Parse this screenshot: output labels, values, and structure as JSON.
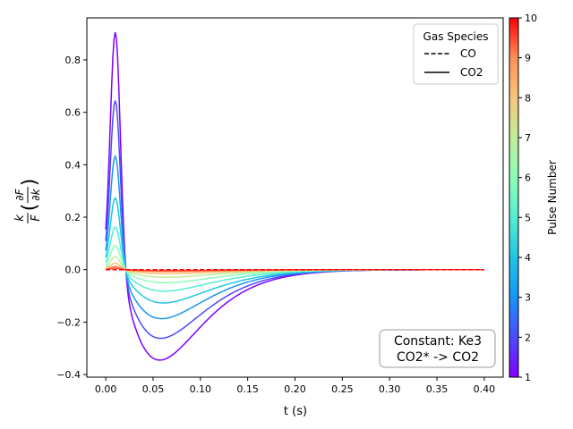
{
  "chart_data": {
    "type": "line",
    "title": "",
    "xlabel": "t (s)",
    "ylabel_math": {
      "k": "k",
      "F": "F",
      "partial_F": "∂F",
      "partial_k": "∂k"
    },
    "xlim": [
      -0.02,
      0.42
    ],
    "ylim": [
      -0.41,
      0.96
    ],
    "xticks": [
      0.0,
      0.05,
      0.1,
      0.15,
      0.2,
      0.25,
      0.3,
      0.35,
      0.4
    ],
    "xtick_labels": [
      "0.00",
      "0.05",
      "0.10",
      "0.15",
      "0.20",
      "0.25",
      "0.30",
      "0.35",
      "0.40"
    ],
    "yticks": [
      -0.4,
      -0.2,
      0.0,
      0.2,
      0.4,
      0.6,
      0.8
    ],
    "ytick_labels": [
      "−0.4",
      "−0.2",
      "0.0",
      "0.2",
      "0.4",
      "0.6",
      "0.8"
    ],
    "grid": false,
    "legend": {
      "title": "Gas Species",
      "placement": "top-right",
      "entries": [
        {
          "label": "CO",
          "style": "dashed"
        },
        {
          "label": "CO2",
          "style": "solid"
        }
      ]
    },
    "annotation": {
      "line1": "Constant: Ke3",
      "line2": "CO2* -> CO2",
      "placement": "bottom-right"
    },
    "colorbar": {
      "label": "Pulse Number",
      "min": 1,
      "max": 10,
      "ticks": [
        "1",
        "2",
        "3",
        "4",
        "5",
        "6",
        "7",
        "8",
        "9",
        "10"
      ],
      "colormap": "rainbow"
    },
    "series": [
      {
        "pulse": 1,
        "species": "CO2",
        "color": "#8000ff",
        "peak": 0.905,
        "trough": -0.345,
        "trough_t": 0.057
      },
      {
        "pulse": 2,
        "species": "CO2",
        "color": "#4c4afe",
        "peak": 0.645,
        "trough": -0.262,
        "trough_t": 0.058
      },
      {
        "pulse": 3,
        "species": "CO2",
        "color": "#1696f3",
        "peak": 0.432,
        "trough": -0.187,
        "trough_t": 0.059
      },
      {
        "pulse": 4,
        "species": "CO2",
        "color": "#20c5e5",
        "peak": 0.273,
        "trough": -0.127,
        "trough_t": 0.061
      },
      {
        "pulse": 5,
        "species": "CO2",
        "color": "#56edd1",
        "peak": 0.162,
        "trough": -0.082,
        "trough_t": 0.062
      },
      {
        "pulse": 6,
        "species": "CO2",
        "color": "#8cfdb8",
        "peak": 0.091,
        "trough": -0.05,
        "trough_t": 0.063
      },
      {
        "pulse": 7,
        "species": "CO2",
        "color": "#c2ed9a",
        "peak": 0.049,
        "trough": -0.029,
        "trough_t": 0.064
      },
      {
        "pulse": 8,
        "species": "CO2",
        "color": "#f6c57b",
        "peak": 0.025,
        "trough": -0.016,
        "trough_t": 0.065
      },
      {
        "pulse": 9,
        "species": "CO2",
        "color": "#ff9059",
        "peak": 0.012,
        "trough": -0.008,
        "trough_t": 0.066
      },
      {
        "pulse": 10,
        "species": "CO2",
        "color": "#ff4d2f",
        "peak": 0.006,
        "trough": -0.004,
        "trough_t": 0.067
      },
      {
        "pulse": 1,
        "species": "CO",
        "color": "#8000ff",
        "value": 0.0
      },
      {
        "pulse": 10,
        "species": "CO",
        "color": "#ff0000",
        "value": 0.0
      }
    ]
  }
}
